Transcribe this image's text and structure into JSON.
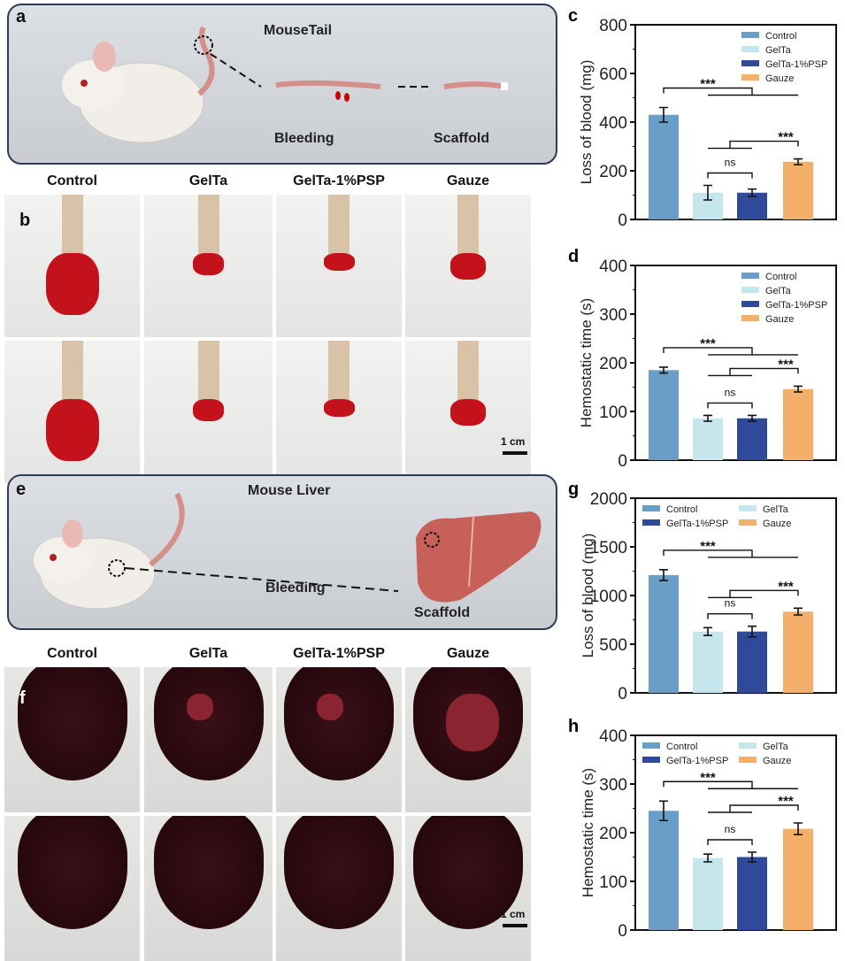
{
  "panels": {
    "a": {
      "letter": "a",
      "title": "MouseTail",
      "step1": "Bleeding",
      "step2": "Scaffold"
    },
    "b": {
      "letter": "b",
      "columns": [
        "Control",
        "GelTa",
        "GelTa-1%PSP",
        "Gauze"
      ],
      "scale": "1 cm"
    },
    "e": {
      "letter": "e",
      "title": "Mouse Liver",
      "step1": "Bleeding",
      "step2": "Scaffold"
    },
    "f": {
      "letter": "f",
      "columns": [
        "Control",
        "GelTa",
        "GelTa-1%PSP",
        "Gauze"
      ],
      "scale": "1 cm"
    }
  },
  "colors": {
    "Control": "#6a9ec6",
    "GelTa": "#c6e6ee",
    "GelTa-1%PSP": "#2e4a99",
    "Gauze": "#f4b06a"
  },
  "chart_data": [
    {
      "panel": "c",
      "type": "bar",
      "categories": [
        "Control",
        "GelTa",
        "GelTa-1%PSP",
        "Gauze"
      ],
      "values": [
        430,
        110,
        110,
        237
      ],
      "errors": [
        30,
        30,
        15,
        12
      ],
      "ylabel": "Loss of blood (mg)",
      "ylim": [
        0,
        800
      ],
      "yticks": [
        0,
        200,
        400,
        600,
        800
      ],
      "legend": "top-right-column",
      "sig": [
        {
          "label": "***"
        },
        {
          "label": "***"
        },
        {
          "label": "ns"
        }
      ]
    },
    {
      "panel": "d",
      "type": "bar",
      "categories": [
        "Control",
        "GelTa",
        "GelTa-1%PSP",
        "Gauze"
      ],
      "values": [
        185,
        86,
        86,
        146
      ],
      "errors": [
        6,
        6,
        6,
        6
      ],
      "ylabel": "Hemostatic time (s)",
      "ylim": [
        0,
        400
      ],
      "yticks": [
        0,
        100,
        200,
        300,
        400
      ],
      "legend": "top-right-column",
      "sig": [
        {
          "label": "***"
        },
        {
          "label": "***"
        },
        {
          "label": "ns"
        }
      ]
    },
    {
      "panel": "g",
      "type": "bar",
      "categories": [
        "Control",
        "GelTa",
        "GelTa-1%PSP",
        "Gauze"
      ],
      "values": [
        1210,
        630,
        630,
        835
      ],
      "errors": [
        55,
        40,
        55,
        35
      ],
      "ylabel": "Loss of blood (mg)",
      "ylim": [
        0,
        2000
      ],
      "yticks": [
        0,
        500,
        1000,
        1500,
        2000
      ],
      "legend": "top-two-column",
      "sig": [
        {
          "label": "***"
        },
        {
          "label": "***"
        },
        {
          "label": "ns"
        }
      ]
    },
    {
      "panel": "h",
      "type": "bar",
      "categories": [
        "Control",
        "GelTa",
        "GelTa-1%PSP",
        "Gauze"
      ],
      "values": [
        245,
        148,
        150,
        208
      ],
      "errors": [
        20,
        8,
        10,
        12
      ],
      "ylabel": "Hemostatic time (s)",
      "ylim": [
        0,
        400
      ],
      "yticks": [
        0,
        100,
        200,
        300,
        400
      ],
      "legend": "top-two-column",
      "sig": [
        {
          "label": "***"
        },
        {
          "label": "***"
        },
        {
          "label": "ns"
        }
      ]
    }
  ]
}
